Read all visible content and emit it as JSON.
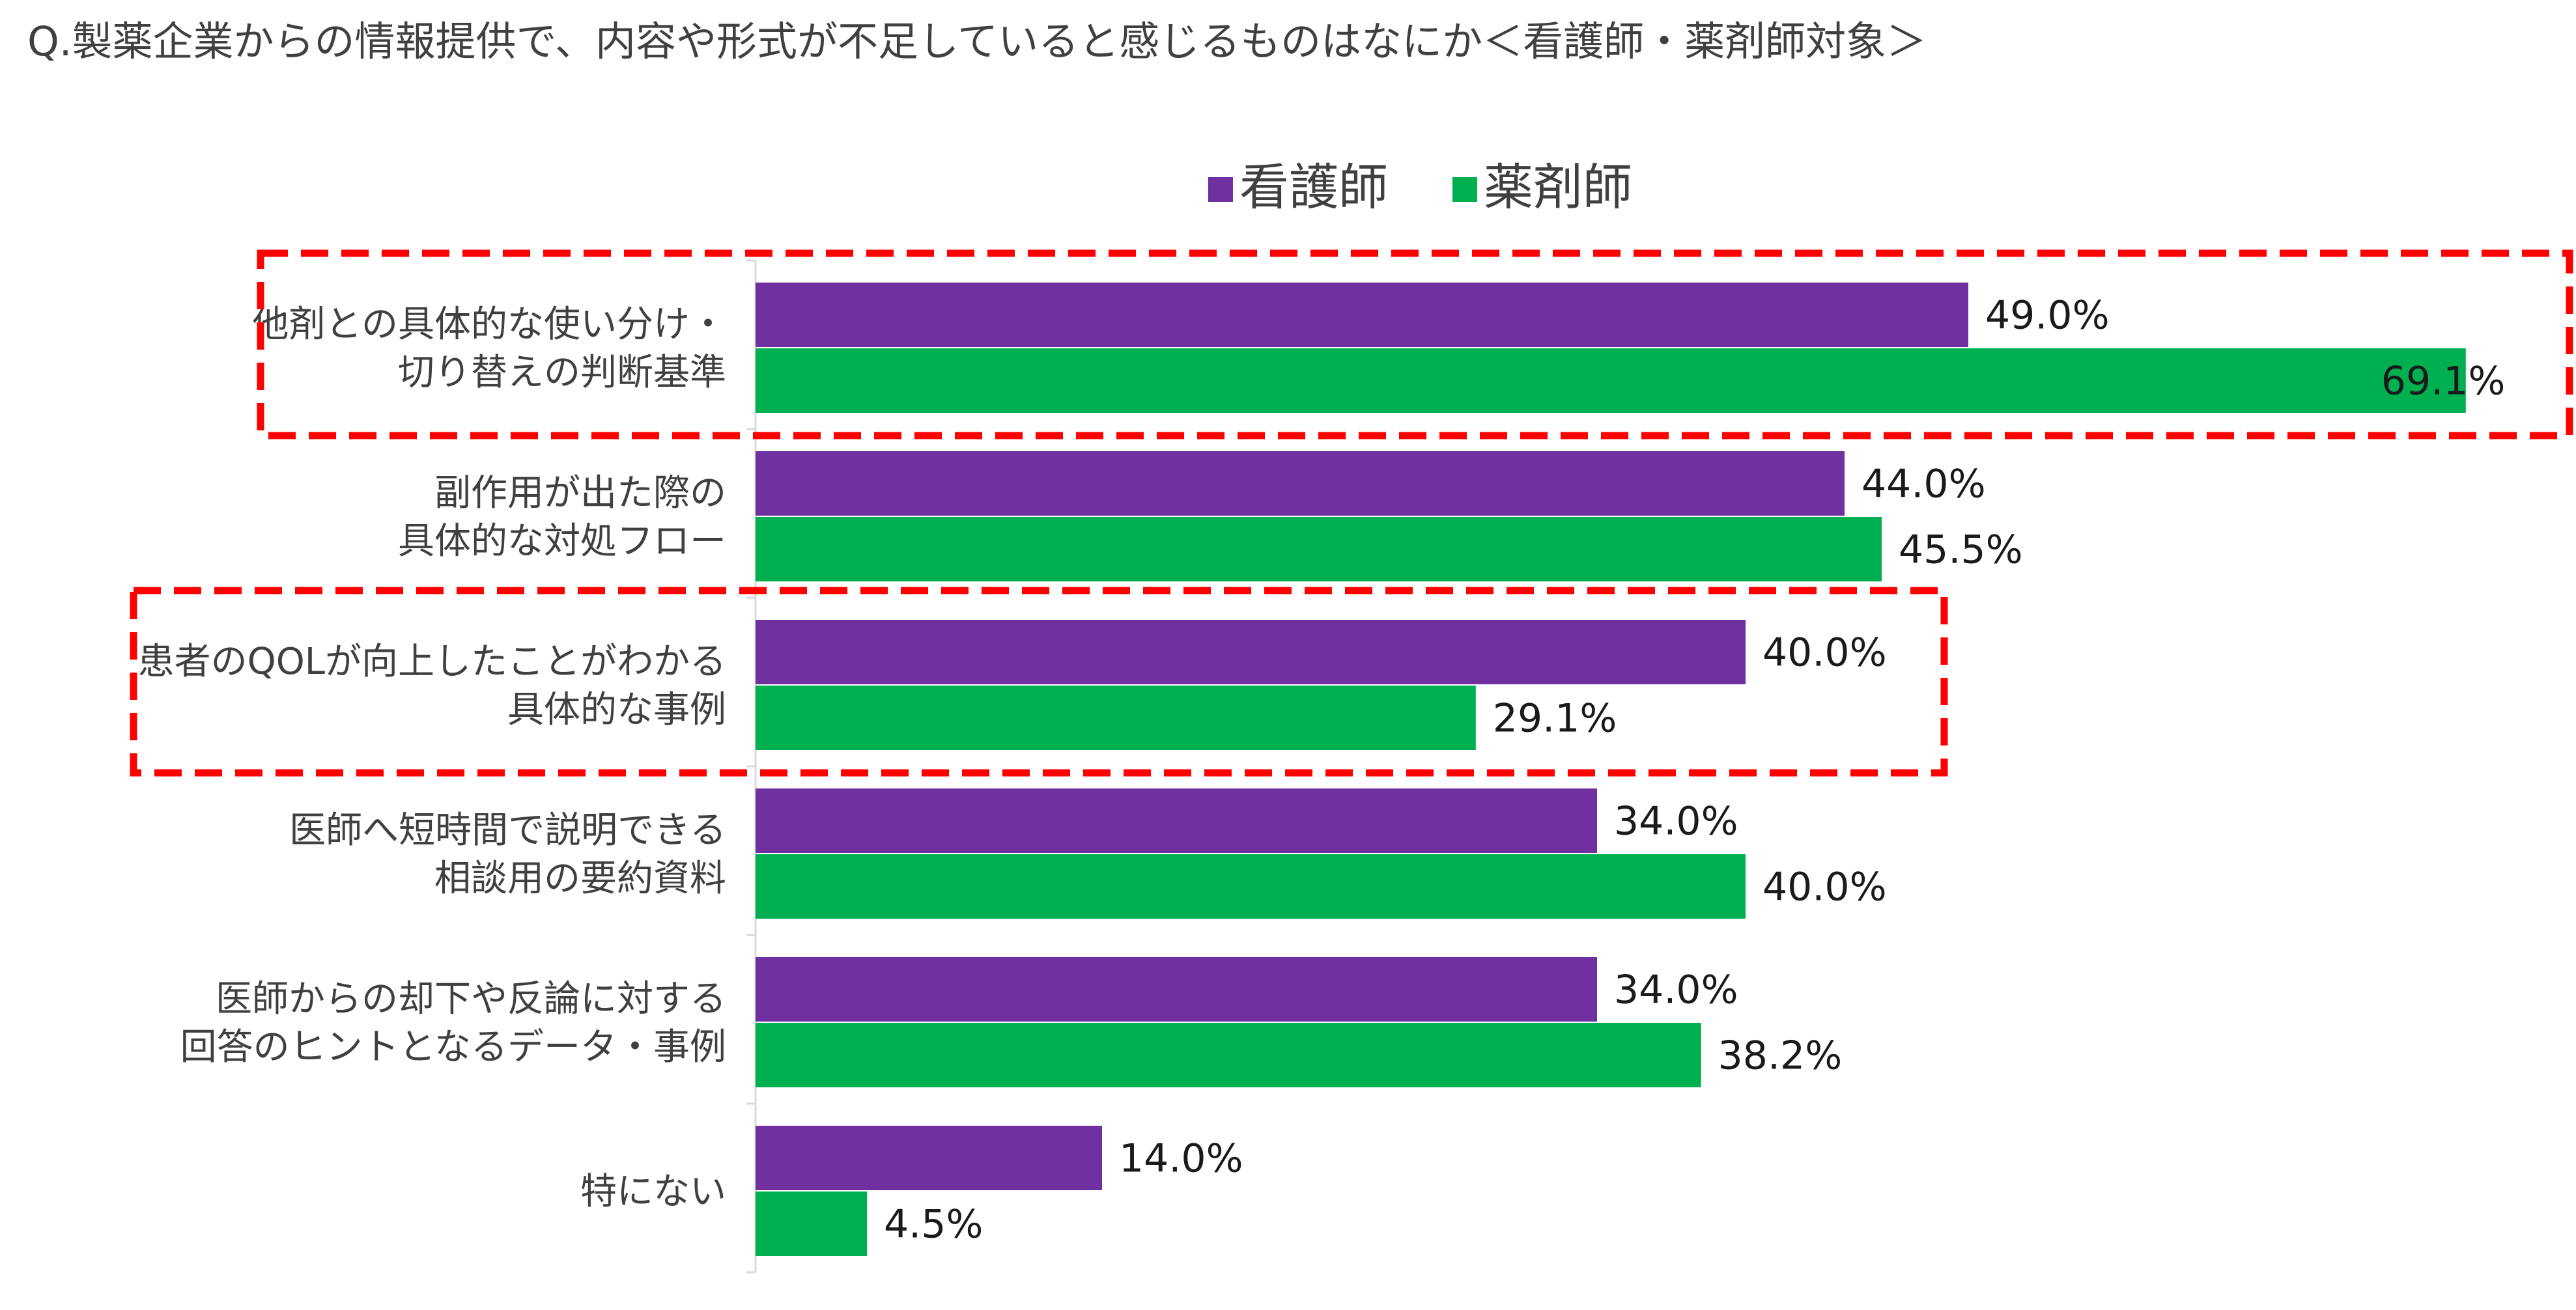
{
  "chart_data": {
    "type": "bar",
    "orientation": "horizontal",
    "title": "Q.製薬企業からの情報提供で、内容や形式が不足していると感じるものはなにか＜看護師・薬剤師対象＞",
    "categories": [
      [
        "他剤との具体的な使い分け・",
        "切り替えの判断基準"
      ],
      [
        "副作用が出た際の",
        "具体的な対処フロー"
      ],
      [
        "患者のQOLが向上したことがわかる",
        "具体的な事例"
      ],
      [
        "医師へ短時間で説明できる",
        "相談用の要約資料"
      ],
      [
        "医師からの却下や反論に対する",
        "回答のヒントとなるデータ・事例"
      ],
      [
        "特にない"
      ]
    ],
    "series": [
      {
        "name": "看護師",
        "color": "#7030a0",
        "values": [
          49.0,
          44.0,
          40.0,
          34.0,
          34.0,
          14.0
        ]
      },
      {
        "name": "薬剤師",
        "color": "#00b050",
        "values": [
          69.1,
          45.5,
          29.1,
          40.0,
          38.2,
          4.5
        ]
      }
    ],
    "value_suffix": "%",
    "xlim": [
      0,
      70
    ],
    "legend_position": "top-center",
    "grid": false,
    "highlight_boxes": {
      "category_indices": [
        0,
        2
      ],
      "color": "#ff0000",
      "style": "dashed"
    }
  }
}
